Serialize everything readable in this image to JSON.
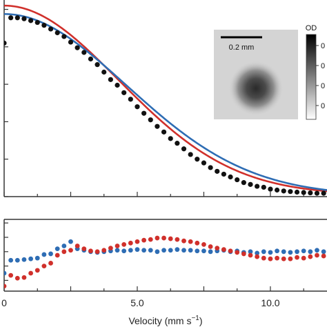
{
  "chart_data": {
    "type": "scatter",
    "xlabel": "Velocity (mm s",
    "xlabel_sup": "−1",
    "xlabel_close": ")",
    "xlim": [
      0,
      12.8
    ],
    "x_ticks": [
      0,
      5,
      10
    ],
    "x_tick_labels": [
      "0",
      "5.0",
      "10.0"
    ],
    "colors": {
      "data": "#111111",
      "fit_blue": "#2e6db4",
      "fit_red": "#d0302b",
      "axis": "#333333"
    },
    "main_panel": {
      "ylim": [
        0,
        1.05
      ],
      "data_points": {
        "x": [
          0.0,
          0.25,
          0.5,
          0.75,
          1.0,
          1.25,
          1.5,
          1.75,
          2.0,
          2.25,
          2.5,
          2.75,
          3.0,
          3.25,
          3.5,
          3.75,
          4.0,
          4.25,
          4.5,
          4.75,
          5.0,
          5.25,
          5.5,
          5.75,
          6.0,
          6.25,
          6.5,
          6.75,
          7.0,
          7.25,
          7.5,
          7.75,
          8.0,
          8.25,
          8.5,
          8.75,
          9.0,
          9.25,
          9.5,
          9.75,
          10.0,
          10.25,
          10.5,
          10.75,
          11.0,
          11.25,
          11.5,
          11.75,
          12.0,
          12.25,
          12.5,
          12.75
        ],
        "y": [
          0.82,
          0.955,
          0.955,
          0.95,
          0.94,
          0.93,
          0.915,
          0.895,
          0.875,
          0.855,
          0.825,
          0.795,
          0.77,
          0.735,
          0.705,
          0.665,
          0.625,
          0.595,
          0.555,
          0.52,
          0.48,
          0.445,
          0.41,
          0.375,
          0.345,
          0.31,
          0.285,
          0.255,
          0.225,
          0.2,
          0.18,
          0.155,
          0.135,
          0.12,
          0.105,
          0.09,
          0.075,
          0.065,
          0.055,
          0.05,
          0.04,
          0.035,
          0.03,
          0.027,
          0.024,
          0.022,
          0.02,
          0.018,
          0.018,
          0.016,
          0.015,
          0.016
        ]
      },
      "fit_blue": {
        "amplitude": 0.97,
        "sigma": 4.6,
        "offset": 0.005
      },
      "fit_red": {
        "amplitude": 1.01,
        "sigma": 4.3,
        "offset": 0.01
      }
    },
    "residual_panel": {
      "ylim": [
        -0.55,
        0.45
      ],
      "blue": {
        "x": [
          0.0,
          0.25,
          0.5,
          0.75,
          1.0,
          1.25,
          1.5,
          1.75,
          2.0,
          2.25,
          2.5,
          2.75,
          3.0,
          3.25,
          3.5,
          3.75,
          4.0,
          4.25,
          4.5,
          4.75,
          5.0,
          5.25,
          5.5,
          5.75,
          6.0,
          6.25,
          6.5,
          6.75,
          7.0,
          7.25,
          7.5,
          7.75,
          8.0,
          8.25,
          8.5,
          8.75,
          9.0,
          9.25,
          9.5,
          9.75,
          10.0,
          10.25,
          10.5,
          10.75,
          11.0,
          11.25,
          11.5,
          11.75,
          12.0,
          12.25,
          12.5,
          12.75
        ],
        "y": [
          -0.3,
          -0.12,
          -0.12,
          -0.11,
          -0.1,
          -0.09,
          -0.04,
          -0.03,
          0.04,
          0.08,
          0.14,
          0.04,
          0.02,
          0.0,
          -0.01,
          0.0,
          0.01,
          0.02,
          0.01,
          0.02,
          0.03,
          0.02,
          0.02,
          0.0,
          0.02,
          0.02,
          0.03,
          0.02,
          0.02,
          0.01,
          0.01,
          0.0,
          0.01,
          0.02,
          0.0,
          0.01,
          -0.01,
          0.0,
          -0.02,
          0.0,
          -0.01,
          0.01,
          0.0,
          -0.01,
          0.0,
          0.01,
          0.0,
          0.02,
          0.0,
          0.01,
          0.02,
          0.01
        ]
      },
      "red": {
        "x": [
          0.0,
          0.25,
          0.5,
          0.75,
          1.0,
          1.25,
          1.5,
          1.75,
          2.0,
          2.25,
          2.5,
          2.75,
          3.0,
          3.25,
          3.5,
          3.75,
          4.0,
          4.25,
          4.5,
          4.75,
          5.0,
          5.25,
          5.5,
          5.75,
          6.0,
          6.25,
          6.5,
          6.75,
          7.0,
          7.25,
          7.5,
          7.75,
          8.0,
          8.25,
          8.5,
          8.75,
          9.0,
          9.25,
          9.5,
          9.75,
          10.0,
          10.25,
          10.5,
          10.75,
          11.0,
          11.25,
          11.5,
          11.75,
          12.0,
          12.25,
          12.5,
          12.75
        ],
        "y": [
          -0.48,
          -0.33,
          -0.37,
          -0.36,
          -0.3,
          -0.26,
          -0.2,
          -0.16,
          -0.05,
          0.0,
          0.02,
          0.08,
          0.04,
          0.01,
          0.0,
          0.02,
          0.05,
          0.08,
          0.1,
          0.12,
          0.14,
          0.16,
          0.17,
          0.19,
          0.19,
          0.18,
          0.17,
          0.15,
          0.14,
          0.12,
          0.1,
          0.07,
          0.05,
          0.03,
          0.01,
          -0.01,
          -0.03,
          -0.05,
          -0.07,
          -0.09,
          -0.1,
          -0.09,
          -0.1,
          -0.1,
          -0.08,
          -0.09,
          -0.07,
          -0.05,
          -0.06,
          -0.03,
          -0.04,
          -0.01
        ]
      }
    },
    "inset": {
      "scale_bar_label": "0.2 mm",
      "colorbar_title": "OD",
      "colorbar_tick_labels": [
        "0",
        "0",
        "0",
        "0"
      ]
    }
  }
}
